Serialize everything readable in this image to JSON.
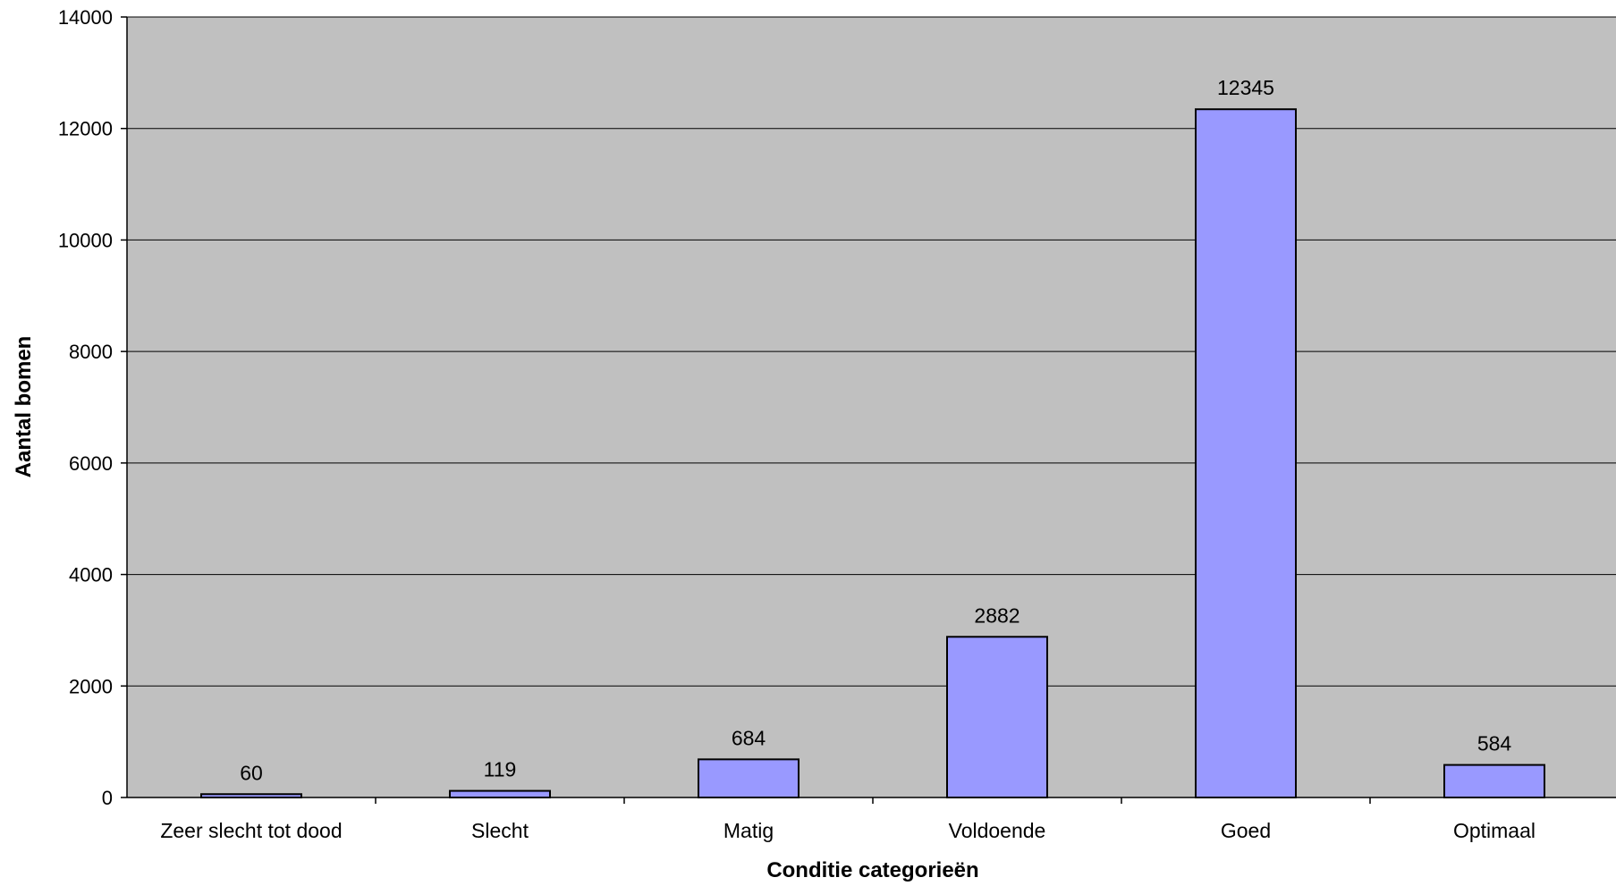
{
  "chart_data": {
    "type": "bar",
    "title": "",
    "xlabel": "Conditie categorieën",
    "ylabel": "Aantal bomen",
    "categories": [
      "Zeer slecht tot dood",
      "Slecht",
      "Matig",
      "Voldoende",
      "Goed",
      "Optimaal"
    ],
    "values": [
      60,
      119,
      684,
      2882,
      12345,
      584
    ],
    "data_labels": [
      "60",
      "119",
      "684",
      "2882",
      "12345",
      "584"
    ],
    "ylim": [
      0,
      14000
    ],
    "yticks": [
      0,
      2000,
      4000,
      6000,
      8000,
      10000,
      12000,
      14000
    ],
    "ytick_labels": [
      "0",
      "2000",
      "4000",
      "6000",
      "8000",
      "10000",
      "12000",
      "14000"
    ],
    "grid": true,
    "legend": "none",
    "colors": {
      "plot_background": "#c0c0c0",
      "bar_fill": "#9999ff",
      "bar_stroke": "#000000",
      "gridline": "#000000"
    }
  }
}
